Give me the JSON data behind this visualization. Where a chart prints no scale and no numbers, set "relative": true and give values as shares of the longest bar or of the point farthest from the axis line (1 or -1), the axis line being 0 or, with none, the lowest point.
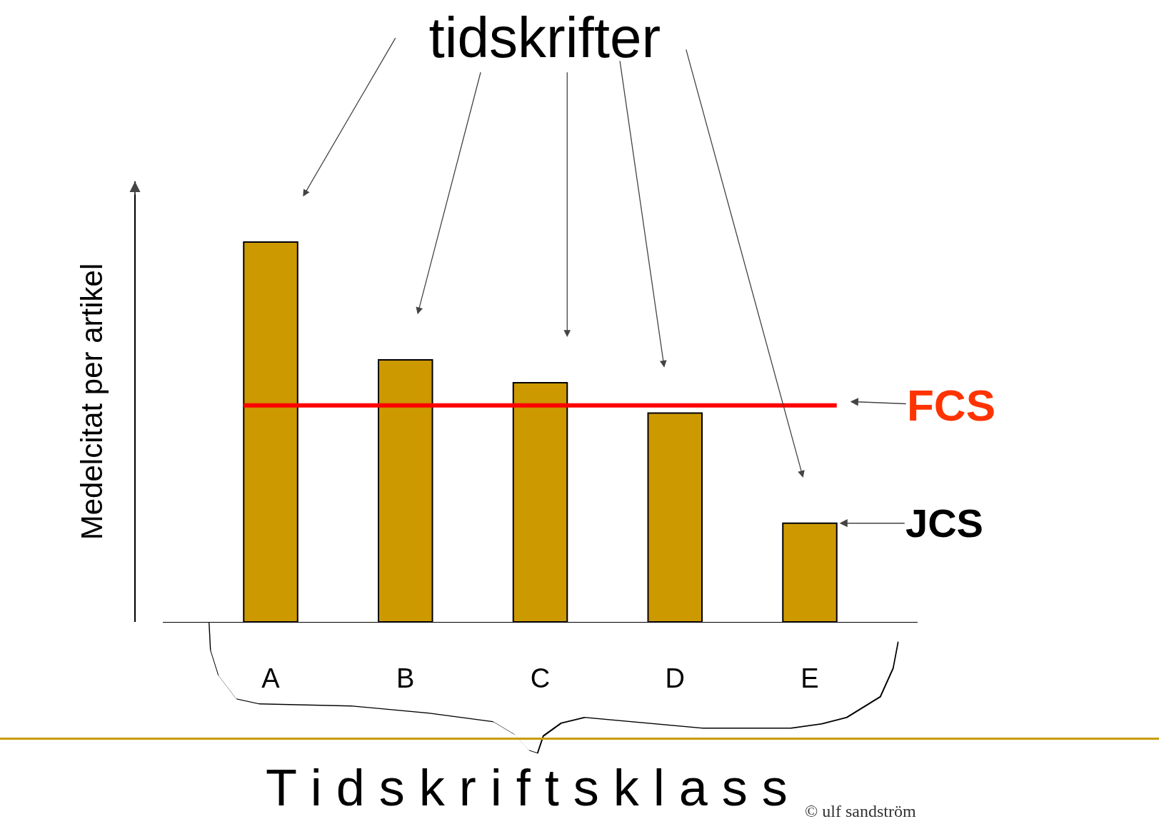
{
  "chart_data": {
    "type": "bar",
    "title": "tidskrifter",
    "xlabel": "T i d s k r i f t s k l a s s",
    "ylabel": "Medelcitat per artikel",
    "categories": [
      "A",
      "B",
      "C",
      "D",
      "E"
    ],
    "values": [
      1,
      0.69,
      0.63,
      0.55,
      0.26
    ],
    "color": "#cc9900",
    "relative": true,
    "ref_lines": [
      {
        "axis": "y",
        "value": 0.57,
        "label": "FCS",
        "color": "#ff0000"
      }
    ],
    "annotations": [
      {
        "text": "JCS",
        "x": "E",
        "y": 0.26
      },
      "© ulf sandström"
    ],
    "grid": false
  }
}
